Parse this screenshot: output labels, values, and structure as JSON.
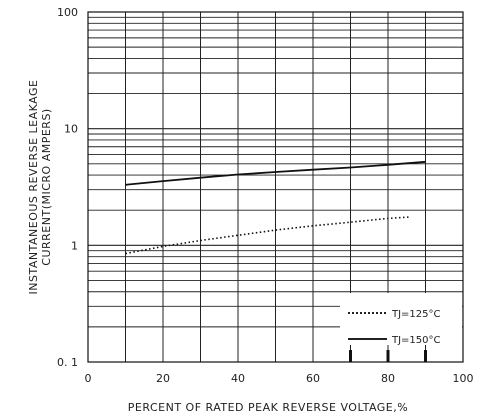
{
  "chart_data": {
    "type": "line",
    "title": "",
    "xlabel": "PERCENT OF RATED PEAK REVERSE VOLTAGE,%",
    "ylabel_line1": "INSTANTANEOUS REVERSE LEAKAGE",
    "ylabel_line2": "CURRENT(MICRO AMPERS)",
    "xlim": [
      0,
      100
    ],
    "ylim": [
      0.1,
      100
    ],
    "y_scale": "log",
    "grid": true,
    "x_ticks": [
      0,
      20,
      40,
      60,
      80,
      100
    ],
    "x_tick_labels": [
      "0",
      "20",
      "40",
      "60",
      "80",
      "100"
    ],
    "y_ticks": [
      0.1,
      1,
      10,
      100
    ],
    "y_tick_labels": [
      "0. 1",
      "1",
      "10",
      "100"
    ],
    "legend_position": "bottom-right",
    "series": [
      {
        "name": "TJ=125°C",
        "style": "dotted",
        "x": [
          10,
          20,
          30,
          40,
          50,
          60,
          70,
          80,
          86
        ],
        "y": [
          0.85,
          0.98,
          1.1,
          1.22,
          1.35,
          1.47,
          1.58,
          1.7,
          1.75
        ]
      },
      {
        "name": "TJ=150°C",
        "style": "solid",
        "x": [
          10,
          20,
          30,
          40,
          50,
          60,
          70,
          80,
          90
        ],
        "y": [
          3.3,
          3.55,
          3.8,
          4.05,
          4.25,
          4.45,
          4.65,
          4.9,
          5.2
        ]
      }
    ]
  }
}
